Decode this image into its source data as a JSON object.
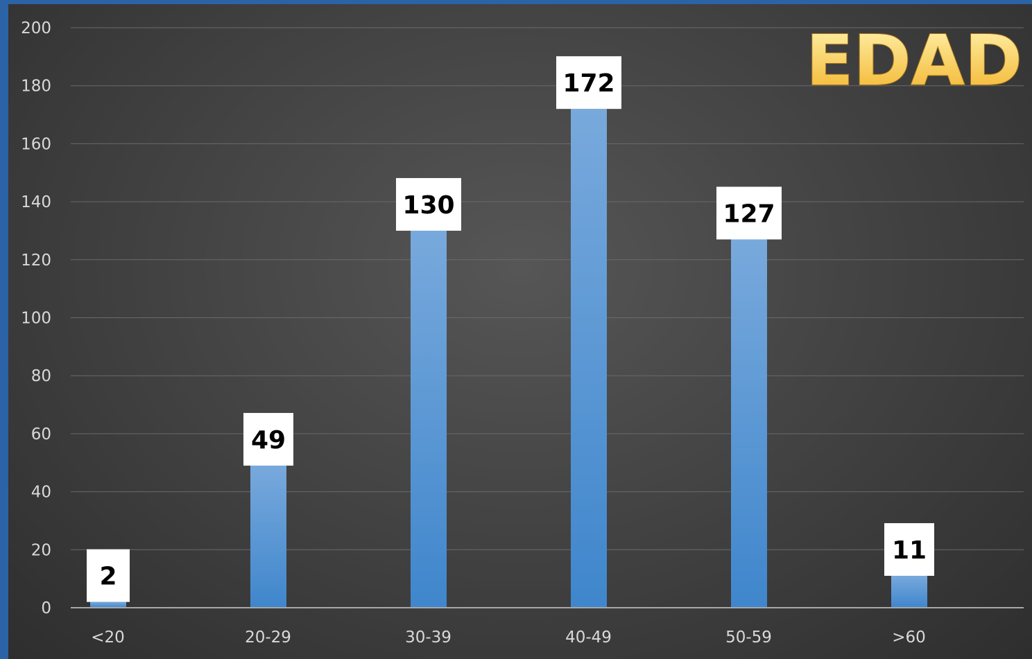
{
  "chart_data": {
    "type": "bar",
    "title": "EDAD",
    "categories": [
      "<20",
      "20-29",
      "30-39",
      "40-49",
      "50-59",
      ">60"
    ],
    "values": [
      2,
      49,
      130,
      172,
      127,
      11
    ],
    "data_labels": [
      "2",
      "49",
      "130",
      "172",
      "127",
      "11"
    ],
    "y_ticks": [
      0,
      20,
      40,
      60,
      80,
      100,
      120,
      140,
      160,
      180,
      200
    ],
    "ylim": [
      0,
      200
    ],
    "xlabel": "",
    "ylabel": "",
    "grid": true,
    "legend": "none"
  },
  "colors": {
    "bar_top": "#78a9dc",
    "bar_bottom": "#3f86cc",
    "title_fill_top": "#fff4b0",
    "title_fill_bottom": "#f2b227",
    "background": "#464646",
    "frame_border": "#2b63a6"
  }
}
